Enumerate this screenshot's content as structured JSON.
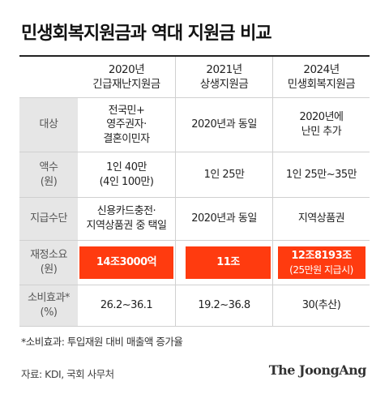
{
  "title": "민생회복지원금과 역대 지원금 비교",
  "columns": [
    {
      "line1": "2020년",
      "line2": "긴급재난지원금"
    },
    {
      "line1": "2021년",
      "line2": "상생지원금"
    },
    {
      "line1": "2024년",
      "line2": "민생회복지원금"
    }
  ],
  "rows": {
    "target": {
      "label": [
        "대상"
      ],
      "c1": [
        "전국민+",
        "영주권자·",
        "결혼이민자"
      ],
      "c2": [
        "2020년과 동일"
      ],
      "c3": [
        "2020년에",
        "난민 추가"
      ]
    },
    "amount": {
      "label": [
        "액수",
        "(원)"
      ],
      "c1": [
        "1인 40만",
        "(4인 100만)"
      ],
      "c2": [
        "1인 25만"
      ],
      "c3": [
        "1인 25만~35만"
      ]
    },
    "method": {
      "label": [
        "지급수단"
      ],
      "c1": [
        "신용카드충전·",
        "지역상품권 중 택일"
      ],
      "c2": [
        "2020년과 동일"
      ],
      "c3": [
        "지역상품권"
      ]
    },
    "budget": {
      "label": [
        "재정소요",
        "(원)"
      ],
      "c1": [
        "14조3000억"
      ],
      "c2": [
        "11조"
      ],
      "c3": [
        "12조8193조",
        "(25만원 지급시)"
      ]
    },
    "effect": {
      "label": [
        "소비효과*",
        "(%)"
      ],
      "c1": [
        "26.2~36.1"
      ],
      "c2": [
        "19.2~36.8"
      ],
      "c3": [
        "30(추산)"
      ]
    }
  },
  "note": "*소비효과: 투입재원 대비 매출액 증가율",
  "source": "자료: KDI, 국회 사무처",
  "logo": "The JoongAng",
  "colors": {
    "highlight": "#ff3b0f",
    "label_bg": "#e6e6e6"
  }
}
